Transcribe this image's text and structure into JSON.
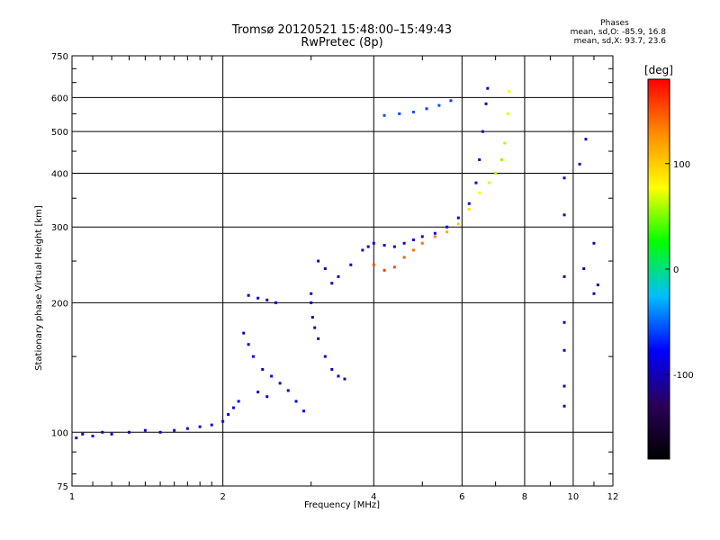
{
  "header": {
    "title_line1": "Tromsø 20120521 15:48:00–15:49:43",
    "title_line2": "RwPretec (8p)"
  },
  "phases": {
    "title": "Phases",
    "line_o": "mean, sd,O: -85.9, 16.8",
    "line_x": "mean, sd,X:  93.7, 23.6"
  },
  "chart_data": {
    "type": "scatter",
    "xlabel": "Frequency [MHz]",
    "ylabel": "Stationary phase Virtual Height [km]",
    "x_scale": "log",
    "y_scale": "log",
    "xlim": [
      1,
      12
    ],
    "ylim": [
      75,
      750
    ],
    "x_ticks": [
      1,
      2,
      4,
      6,
      8,
      10,
      12
    ],
    "y_ticks": [
      75,
      100,
      200,
      300,
      400,
      500,
      600,
      750
    ],
    "grid": true,
    "colorbar": {
      "label": "[deg]",
      "range": [
        -180,
        180
      ],
      "ticks": [
        100,
        0,
        -100
      ],
      "palette": [
        "#000000",
        "#2a005a",
        "#0000ff",
        "#00bfff",
        "#00ff00",
        "#ffff00",
        "#ff8c00",
        "#ff0000"
      ]
    },
    "series": [
      {
        "points": [
          [
            1.02,
            97,
            -95
          ],
          [
            1.05,
            99,
            -100
          ],
          [
            1.1,
            98,
            -90
          ],
          [
            1.15,
            100,
            -100
          ],
          [
            1.2,
            99,
            -95
          ],
          [
            1.3,
            100,
            -100
          ],
          [
            1.4,
            101,
            -90
          ],
          [
            1.5,
            100,
            -100
          ],
          [
            1.6,
            101,
            -95
          ],
          [
            1.7,
            102,
            -95
          ],
          [
            1.8,
            103,
            -90
          ],
          [
            1.9,
            104,
            -95
          ],
          [
            2.0,
            106,
            -85
          ],
          [
            2.05,
            110,
            -90
          ],
          [
            2.1,
            114,
            -88
          ],
          [
            2.15,
            118,
            -85
          ]
        ]
      },
      {
        "points": [
          [
            2.2,
            170,
            -95
          ],
          [
            2.25,
            160,
            -90
          ],
          [
            2.3,
            150,
            -88
          ],
          [
            2.4,
            140,
            -85
          ],
          [
            2.5,
            135,
            -80
          ],
          [
            2.6,
            130,
            -85
          ],
          [
            2.7,
            125,
            -80
          ],
          [
            2.8,
            118,
            -85
          ],
          [
            2.9,
            112,
            -80
          ],
          [
            2.35,
            124,
            -90
          ],
          [
            2.45,
            121,
            -85
          ]
        ]
      },
      {
        "points": [
          [
            2.25,
            208,
            -90
          ],
          [
            2.35,
            205,
            -85
          ],
          [
            2.45,
            203,
            -90
          ],
          [
            2.55,
            200,
            -85
          ]
        ]
      },
      {
        "points": [
          [
            3.0,
            200,
            -100
          ],
          [
            3.02,
            185,
            -100
          ],
          [
            3.05,
            175,
            -95
          ],
          [
            3.1,
            165,
            -100
          ],
          [
            3.2,
            150,
            -95
          ],
          [
            3.3,
            140,
            -100
          ],
          [
            3.4,
            135,
            -95
          ],
          [
            3.5,
            133,
            -100
          ],
          [
            3.0,
            210,
            -100
          ],
          [
            3.1,
            250,
            -100
          ],
          [
            3.2,
            240,
            -100
          ],
          [
            3.3,
            222,
            -95
          ],
          [
            3.4,
            230,
            -95
          ],
          [
            3.6,
            245,
            -90
          ],
          [
            3.8,
            265,
            -95
          ]
        ]
      },
      {
        "points": [
          [
            3.9,
            270,
            -90
          ],
          [
            4.0,
            275,
            -85
          ],
          [
            4.2,
            272,
            -85
          ],
          [
            4.4,
            270,
            -90
          ],
          [
            4.6,
            275,
            -85
          ],
          [
            4.8,
            280,
            -85
          ],
          [
            5.0,
            285,
            -88
          ],
          [
            5.3,
            290,
            -85
          ],
          [
            5.6,
            300,
            -88
          ],
          [
            5.9,
            315,
            -90
          ],
          [
            6.2,
            340,
            -92
          ],
          [
            6.4,
            380,
            -95
          ],
          [
            6.5,
            430,
            -98
          ],
          [
            6.6,
            500,
            -95
          ],
          [
            6.7,
            580,
            -100
          ],
          [
            6.75,
            630,
            -105
          ]
        ]
      },
      {
        "points": [
          [
            4.0,
            245,
            150
          ],
          [
            4.2,
            238,
            160
          ],
          [
            4.4,
            242,
            155
          ],
          [
            4.6,
            255,
            145
          ],
          [
            4.8,
            265,
            140
          ],
          [
            5.0,
            275,
            140
          ],
          [
            5.3,
            285,
            130
          ],
          [
            5.6,
            292,
            115
          ],
          [
            5.9,
            305,
            100
          ],
          [
            6.2,
            330,
            90
          ],
          [
            6.5,
            360,
            80
          ],
          [
            6.8,
            380,
            70
          ],
          [
            7.0,
            400,
            60
          ],
          [
            7.2,
            430,
            55
          ],
          [
            7.3,
            470,
            60
          ],
          [
            7.4,
            550,
            70
          ],
          [
            7.45,
            620,
            80
          ]
        ]
      },
      {
        "points": [
          [
            4.2,
            545,
            -55
          ],
          [
            4.5,
            550,
            -60
          ],
          [
            4.8,
            555,
            -55
          ],
          [
            5.1,
            565,
            -60
          ],
          [
            5.4,
            575,
            -55
          ],
          [
            5.7,
            590,
            -60
          ]
        ]
      },
      {
        "points": [
          [
            9.6,
            390,
            -100
          ],
          [
            9.6,
            320,
            -100
          ],
          [
            9.6,
            230,
            -100
          ],
          [
            9.6,
            180,
            -100
          ],
          [
            9.6,
            155,
            -100
          ],
          [
            9.6,
            128,
            -100
          ],
          [
            9.6,
            115,
            -100
          ],
          [
            10.3,
            420,
            -100
          ],
          [
            10.5,
            240,
            -100
          ],
          [
            11.0,
            210,
            -100
          ],
          [
            11.2,
            220,
            -100
          ],
          [
            11.0,
            275,
            -100
          ],
          [
            10.6,
            480,
            -100
          ]
        ]
      }
    ]
  }
}
